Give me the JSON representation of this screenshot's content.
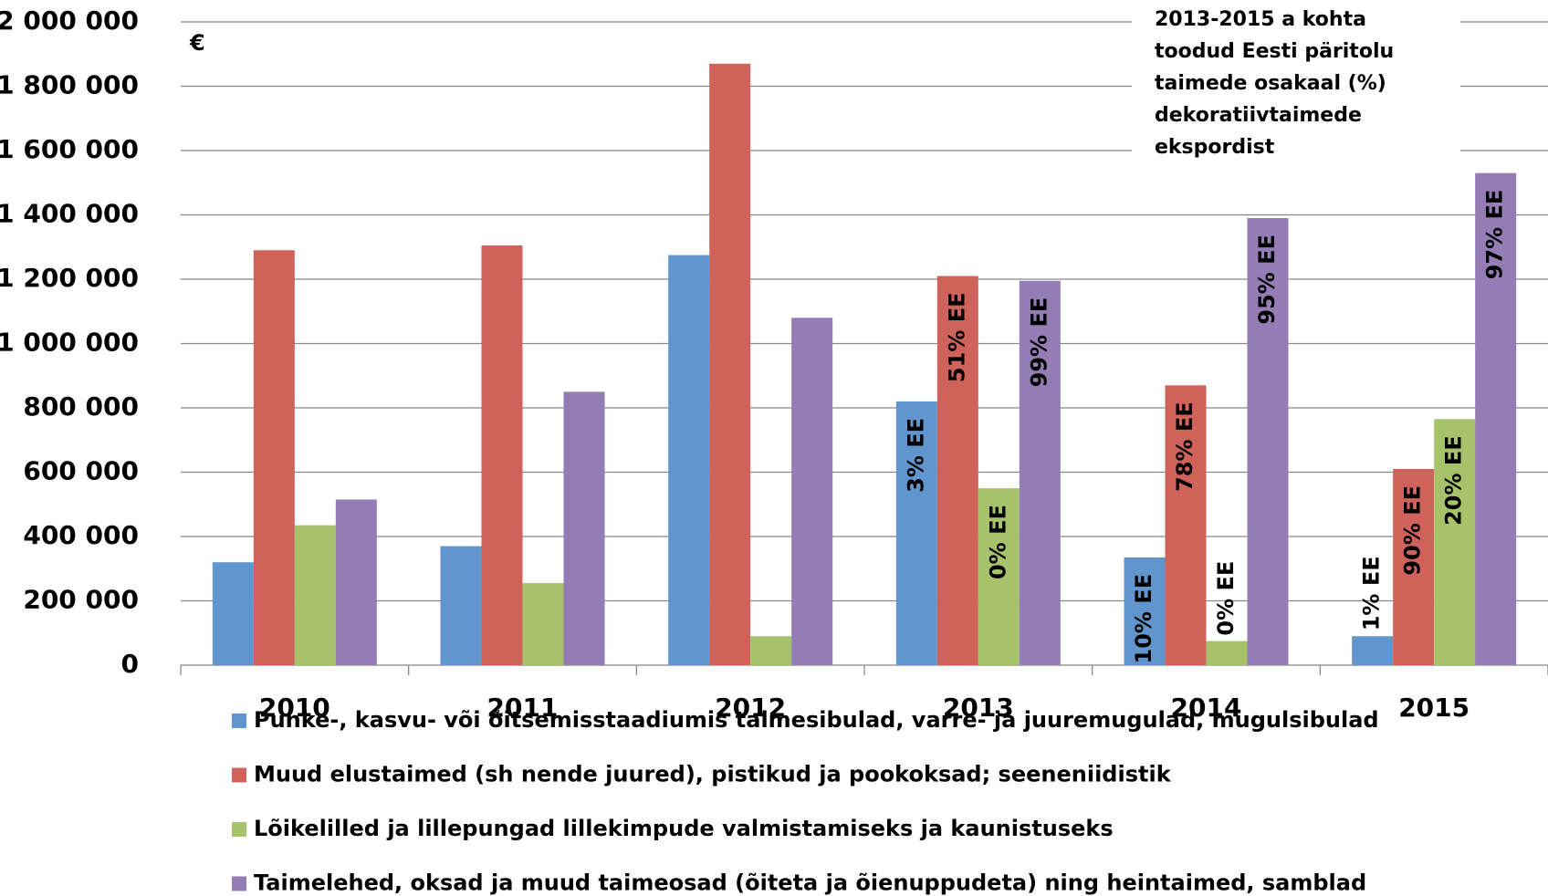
{
  "chart_data": {
    "type": "bar",
    "annotations": [
      "€"
    ],
    "note": [
      "2013-2015 a kohta",
      "toodud Eesti päritolu",
      "taimede osakaal (%)",
      "dekoratiivtaimede",
      "ekspordist"
    ],
    "categories": [
      "2010",
      "2011",
      "2012",
      "2013",
      "2014",
      "2015"
    ],
    "series": [
      {
        "name": "Punke-, kasvu- või õitsemisstaadiumis taimesibulad, varre- ja juuremugulad, mugulsibulad",
        "color": "#6096cd",
        "values": [
          320000,
          370000,
          1275000,
          820000,
          335000,
          90000
        ],
        "bar_labels": [
          null,
          null,
          null,
          "3% EE",
          "10% EE",
          "1% EE"
        ]
      },
      {
        "name": "Muud elustaimed (sh nende juured), pistikud ja pookoksad; seeneniidistik",
        "color": "#d0625c",
        "values": [
          1290000,
          1305000,
          1870000,
          1210000,
          870000,
          610000
        ],
        "bar_labels": [
          null,
          null,
          null,
          "51% EE",
          "78% EE",
          "90% EE"
        ]
      },
      {
        "name": "Lõikelilled ja lillepungad lillekimpude valmistamiseks ja kaunistuseks",
        "color": "#a6c36b",
        "values": [
          435000,
          255000,
          90000,
          550000,
          75000,
          765000
        ],
        "bar_labels": [
          null,
          null,
          null,
          "0% EE",
          "0% EE",
          "20% EE"
        ]
      },
      {
        "name": "Taimelehed, oksad ja muud taimeosad (õiteta ja õienuppudeta) ning heintaimed, samblad",
        "color": "#947cb4",
        "values": [
          515000,
          850000,
          1080000,
          1195000,
          1390000,
          1530000
        ],
        "bar_labels": [
          null,
          null,
          null,
          "99% EE",
          "95% EE",
          "97% EE"
        ]
      }
    ],
    "ylim": [
      0,
      2000000
    ],
    "yticks": [
      {
        "value": 0,
        "label": "0"
      },
      {
        "value": 200000,
        "label": "200 000"
      },
      {
        "value": 400000,
        "label": "400 000"
      },
      {
        "value": 600000,
        "label": "600 000"
      },
      {
        "value": 800000,
        "label": "800 000"
      },
      {
        "value": 1000000,
        "label": "1 000 000"
      },
      {
        "value": 1200000,
        "label": "1 200 000"
      },
      {
        "value": 1400000,
        "label": "1 400 000"
      },
      {
        "value": 1600000,
        "label": "1 600 000"
      },
      {
        "value": 1800000,
        "label": "1 800 000"
      },
      {
        "value": 2000000,
        "label": "2 000 000"
      }
    ],
    "grid": true
  }
}
